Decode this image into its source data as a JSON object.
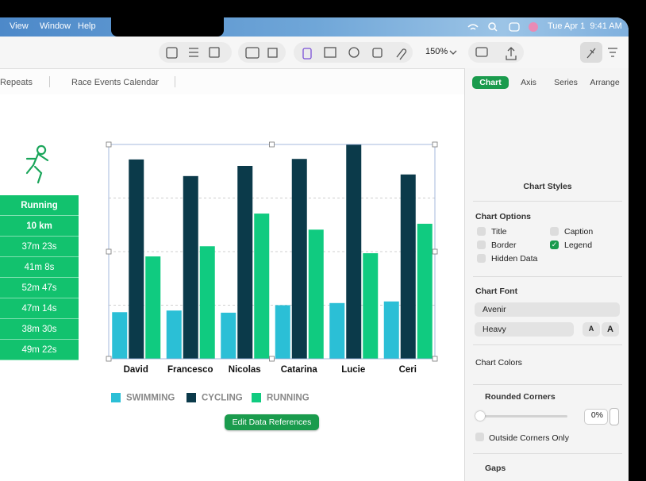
{
  "menu": {
    "items": [
      "View",
      "Window",
      "Help"
    ],
    "clock": "Tue Apr 1  9:41 AM"
  },
  "toolbar": {
    "zoom": "150%"
  },
  "sheet_tabs": [
    "Repeats",
    "Race Events Calendar"
  ],
  "table": {
    "header": [
      "Running",
      "10 km"
    ],
    "rows": [
      "37m 23s",
      "41m 8s",
      "52m 47s",
      "47m 14s",
      "38m 30s",
      "49m 22s"
    ]
  },
  "chart_data": {
    "type": "bar",
    "categories": [
      "David",
      "Francesco",
      "Nicolas",
      "Catarina",
      "Lucie",
      "Ceri"
    ],
    "series": [
      {
        "name": "SWIMMING",
        "color": "#2bbfd6",
        "values": [
          0.87,
          0.9,
          0.86,
          1.0,
          1.04,
          1.07
        ]
      },
      {
        "name": "CYCLING",
        "color": "#0b3a4a",
        "values": [
          3.72,
          3.41,
          3.6,
          3.73,
          4.0,
          3.44
        ]
      },
      {
        "name": "RUNNING",
        "color": "#10cb80",
        "values": [
          1.91,
          2.1,
          2.71,
          2.41,
          1.97,
          2.52
        ]
      }
    ],
    "ylim": [
      0,
      4
    ],
    "yticks": [
      1,
      2,
      3
    ],
    "grid": true,
    "legend": "bottom"
  },
  "chart_button": "Edit Data References",
  "sidebar": {
    "tabs": [
      "Chart",
      "Axis",
      "Series",
      "Arrange"
    ],
    "styles_label": "Chart Styles",
    "options_title": "Chart Options",
    "options": [
      {
        "label": "Title",
        "checked": false
      },
      {
        "label": "Caption",
        "checked": false
      },
      {
        "label": "Border",
        "checked": false
      },
      {
        "label": "Legend",
        "checked": true
      },
      {
        "label": "Hidden Data",
        "checked": false
      }
    ],
    "font_title": "Chart Font",
    "font": "Avenir",
    "weight": "Heavy",
    "size_buttons": [
      "A",
      "A"
    ],
    "colors_label": "Chart Colors",
    "rounded_title": "Rounded Corners",
    "rounded_value": "0%",
    "outside_label": "Outside Corners Only",
    "gaps_title": "Gaps"
  }
}
